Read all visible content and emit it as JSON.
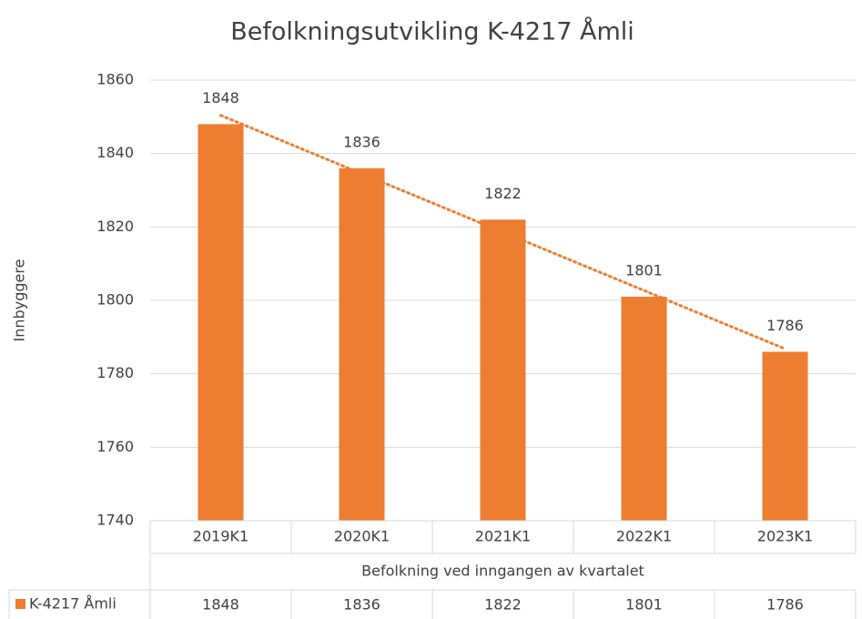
{
  "chart_data": {
    "type": "bar",
    "title": "Befolkningsutvikling K-4217 Åmli",
    "y_label": "Innbyggere",
    "x_label": "Befolkning ved inngangen av kvartalet",
    "categories": [
      "2019K1",
      "2020K1",
      "2021K1",
      "2022K1",
      "2023K1"
    ],
    "series": [
      {
        "name": "K-4217 Åmli",
        "color": "#ed7d31",
        "values": [
          1848,
          1836,
          1822,
          1801,
          1786
        ]
      }
    ],
    "ylim": [
      1740,
      1860
    ],
    "yticks": [
      1740,
      1760,
      1780,
      1800,
      1820,
      1840,
      1860
    ],
    "grid": true,
    "trendline": "linear",
    "data_labels": true,
    "data_table": true
  }
}
